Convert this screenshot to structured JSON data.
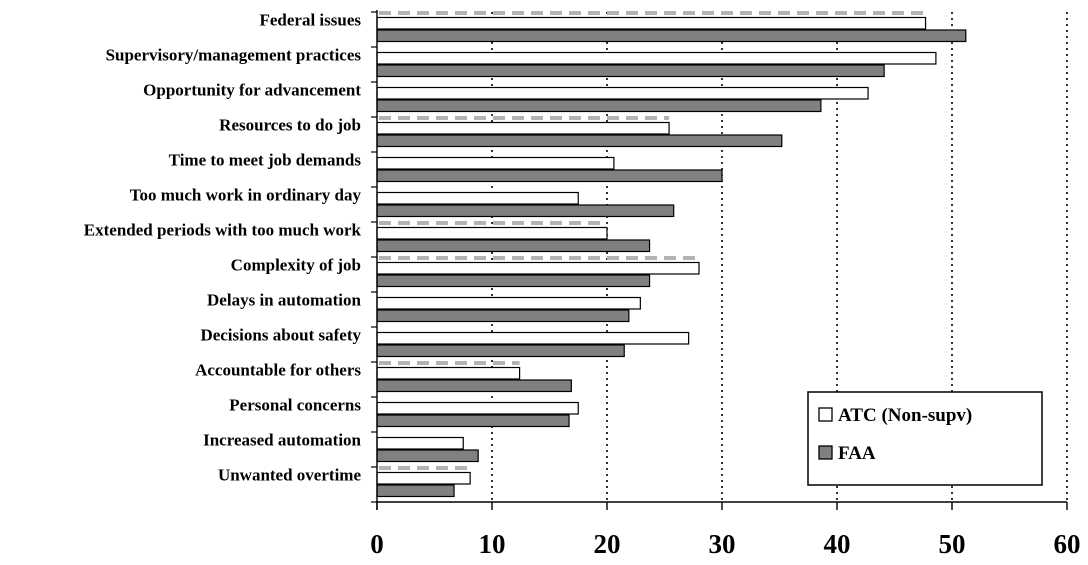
{
  "chart_data": {
    "type": "bar",
    "orientation": "horizontal",
    "categories": [
      "Federal issues",
      "Supervisory/management practices",
      "Opportunity for advancement",
      "Resources to do job",
      "Time to meet job demands",
      "Too much work in ordinary day",
      "Extended periods with too much work",
      "Complexity of job",
      "Delays in automation",
      "Decisions about safety",
      "Accountable for others",
      "Personal concerns",
      "Increased automation",
      "Unwanted overtime"
    ],
    "series": [
      {
        "name": "ATC (Non-supv)",
        "color": "#ffffff",
        "values": [
          47.7,
          48.6,
          42.7,
          25.4,
          20.6,
          17.5,
          20.0,
          28.0,
          22.9,
          27.1,
          12.4,
          17.5,
          7.5,
          8.1
        ]
      },
      {
        "name": "FAA",
        "color": "#808080",
        "values": [
          51.2,
          44.1,
          38.6,
          35.2,
          30.0,
          25.8,
          23.7,
          23.7,
          21.9,
          21.5,
          16.9,
          16.7,
          8.8,
          6.7
        ]
      }
    ],
    "xlim": [
      0,
      60
    ],
    "xticks": [
      "0",
      "10",
      "20",
      "30",
      "40",
      "50",
      "60"
    ],
    "grid": "vertical-dotted",
    "legend_position": "bottom-right",
    "title": "",
    "xlabel": "",
    "ylabel": ""
  }
}
